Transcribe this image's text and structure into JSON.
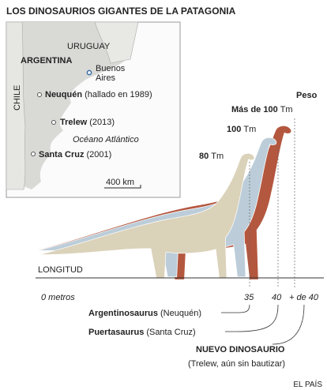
{
  "header": {
    "title": "LOS DINOSAURIOS GIGANTES DE LA PATAGONIA"
  },
  "map": {
    "country_north": "URUGUAY",
    "country": "ARGENTINA",
    "country_west": "CHILE",
    "city": [
      "Buenos",
      "Aires"
    ],
    "ocean": [
      "Océano",
      "Atlántico"
    ],
    "scale": "400 km",
    "sites": [
      {
        "name": "Neuquén",
        "note": "(hallado en 1989)"
      },
      {
        "name": "Trelew",
        "note": "(2013)"
      },
      {
        "name": "Santa Cruz",
        "note": "(2001)"
      }
    ]
  },
  "weights": {
    "heading": "Peso",
    "items": [
      {
        "value": "Más de 100",
        "unit": "Tm"
      },
      {
        "value": "100",
        "unit": "Tm"
      },
      {
        "value": "80",
        "unit": "Tm"
      }
    ]
  },
  "length": {
    "heading": "LONGITUD",
    "ticks": [
      "0 metros",
      "35",
      "40",
      "+ de 40"
    ]
  },
  "species": [
    {
      "name": "Argentinosaurus",
      "place": "(Neuquén)"
    },
    {
      "name": "Puertasaurus",
      "place": "(Santa Cruz)"
    },
    {
      "name": "NUEVO DINOSAURIO",
      "place": "(Trelew, aún sin bautizar)"
    }
  ],
  "source": "EL PAÍS"
}
